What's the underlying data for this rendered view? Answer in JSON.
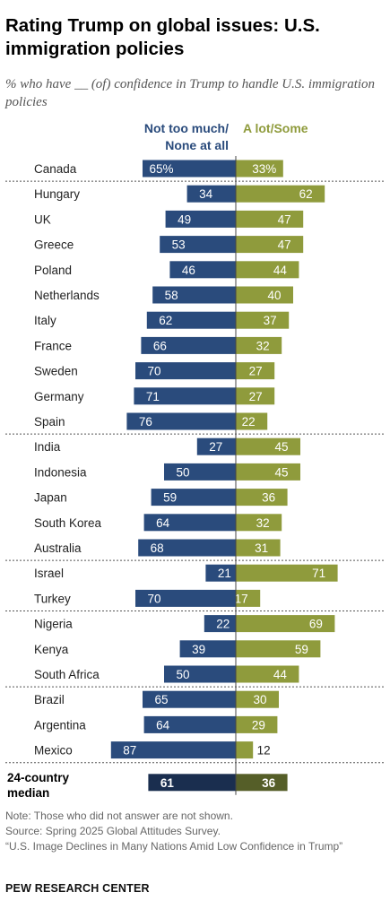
{
  "chart_data": {
    "type": "bar",
    "title": "Rating Trump on global issues: U.S. immigration policies",
    "subtitle": "% who have __ (of) confidence in Trump to handle U.S. immigration policies",
    "legend": [
      {
        "name": "Not too much/ None at all",
        "lines": [
          "Not too much/",
          "None at all"
        ],
        "color": "#2a4b7c"
      },
      {
        "name": "A lot/Some",
        "lines": [
          "A lot/Some"
        ],
        "color": "#8f9b3c"
      }
    ],
    "categories": [
      "Canada",
      "Hungary",
      "UK",
      "Greece",
      "Poland",
      "Netherlands",
      "Italy",
      "France",
      "Sweden",
      "Germany",
      "Spain",
      "India",
      "Indonesia",
      "Japan",
      "South Korea",
      "Australia",
      "Israel",
      "Turkey",
      "Nigeria",
      "Kenya",
      "South Africa",
      "Brazil",
      "Argentina",
      "Mexico"
    ],
    "series": [
      {
        "name": "Not too much/ None at all",
        "values": [
          65,
          34,
          49,
          53,
          46,
          58,
          62,
          66,
          70,
          71,
          76,
          27,
          50,
          59,
          64,
          68,
          21,
          70,
          22,
          39,
          50,
          65,
          64,
          87
        ],
        "labels": [
          "65%",
          "34",
          "49",
          "53",
          "46",
          "58",
          "62",
          "66",
          "70",
          "71",
          "76",
          "27",
          "50",
          "59",
          "64",
          "68",
          "21",
          "70",
          "22",
          "39",
          "50",
          "65",
          "64",
          "87"
        ]
      },
      {
        "name": "A lot/Some",
        "values": [
          33,
          62,
          47,
          47,
          44,
          40,
          37,
          32,
          27,
          27,
          22,
          45,
          45,
          36,
          32,
          31,
          71,
          17,
          69,
          59,
          44,
          30,
          29,
          12
        ],
        "labels": [
          "33%",
          "62",
          "47",
          "47",
          "44",
          "40",
          "37",
          "32",
          "27",
          "27",
          "22",
          "45",
          "45",
          "36",
          "32",
          "31",
          "71",
          "17",
          "69",
          "59",
          "44",
          "30",
          "29",
          "12"
        ]
      }
    ],
    "groups_after": [
      0,
      10,
      15,
      17,
      20
    ],
    "median": {
      "label_lines": [
        "24-country",
        "median"
      ],
      "values": [
        61,
        36
      ],
      "labels": [
        "61",
        "36"
      ],
      "colors": [
        "#1a2e4f",
        "#555e28"
      ]
    }
  },
  "notes": {
    "note": "Note: Those who did not answer are not shown.",
    "source": "Source: Spring 2025 Global Attitudes Survey.",
    "report": "“U.S. Image Declines in Many Nations Amid Low Confidence in Trump”"
  },
  "credit": "PEW RESEARCH CENTER"
}
